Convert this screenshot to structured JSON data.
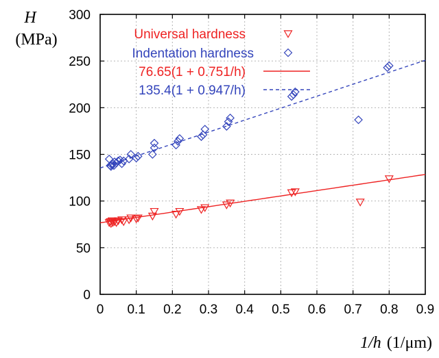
{
  "chart_data": {
    "type": "scatter",
    "xlim": [
      0,
      0.9
    ],
    "ylim": [
      0,
      300
    ],
    "grid": true,
    "legend_position": "top-left",
    "x_ticks": [
      "0",
      "0.1",
      "0.2",
      "0.3",
      "0.4",
      "0.5",
      "0.6",
      "0.7",
      "0.8",
      "0.9"
    ],
    "y_ticks": [
      "0",
      "50",
      "100",
      "150",
      "200",
      "250",
      "300"
    ],
    "ylabel": {
      "symbol": "H",
      "unit": "(MPa)"
    },
    "xlabel": {
      "symbol": "1/h",
      "unit": "(1/μm)"
    },
    "series": [
      {
        "name": "Universal hardness",
        "color": "#ee2222",
        "marker": "triangle-down",
        "x": [
          0.025,
          0.028,
          0.03,
          0.033,
          0.035,
          0.04,
          0.045,
          0.05,
          0.06,
          0.065,
          0.08,
          0.085,
          0.1,
          0.105,
          0.145,
          0.15,
          0.21,
          0.22,
          0.28,
          0.29,
          0.35,
          0.36,
          0.53,
          0.54,
          0.72,
          0.8
        ],
        "y": [
          77,
          78,
          76,
          79,
          77,
          78,
          77,
          79,
          80,
          78,
          80,
          82,
          81,
          82,
          84,
          89,
          86,
          89,
          91,
          93,
          96,
          98,
          109,
          110,
          99,
          124
        ]
      },
      {
        "name": "Indentation hardness",
        "color": "#3344bb",
        "marker": "diamond",
        "x": [
          0.025,
          0.028,
          0.03,
          0.032,
          0.035,
          0.038,
          0.04,
          0.045,
          0.05,
          0.055,
          0.06,
          0.065,
          0.08,
          0.085,
          0.1,
          0.105,
          0.145,
          0.15,
          0.15,
          0.21,
          0.215,
          0.22,
          0.28,
          0.285,
          0.29,
          0.35,
          0.355,
          0.36,
          0.53,
          0.535,
          0.54,
          0.715,
          0.795,
          0.8
        ],
        "y": [
          145,
          138,
          137,
          139,
          140,
          138,
          142,
          141,
          143,
          144,
          140,
          143,
          145,
          150,
          146,
          148,
          150,
          157,
          162,
          160,
          164,
          167,
          169,
          171,
          177,
          180,
          185,
          189,
          212,
          214,
          217,
          187,
          243,
          245
        ]
      }
    ],
    "fits": [
      {
        "name": "76.65(1 + 0.751/h)",
        "color": "#ee2222",
        "dash": "solid",
        "a": 76.65,
        "b": 0.751
      },
      {
        "name": "135.4(1 + 0.947/h)",
        "color": "#3344bb",
        "dash": "dashed",
        "a": 135.4,
        "b": 0.947
      }
    ]
  }
}
